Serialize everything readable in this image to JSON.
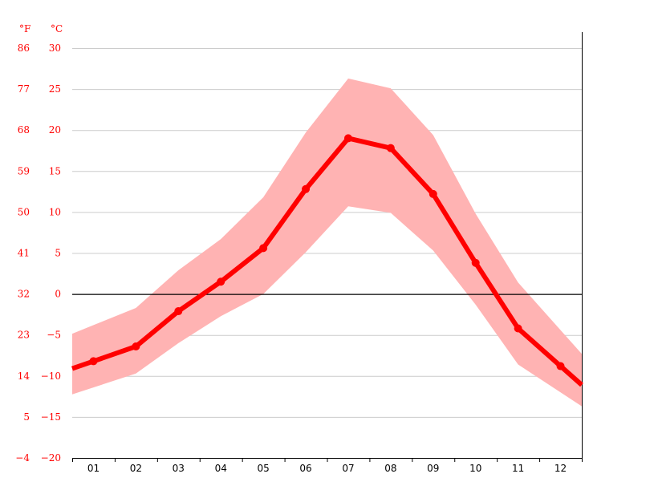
{
  "chart_data": {
    "type": "line",
    "title": "",
    "xlabel": "",
    "ylabel": "",
    "unit_f": "°F",
    "unit_c": "°C",
    "categories": [
      "01",
      "02",
      "03",
      "04",
      "05",
      "06",
      "07",
      "08",
      "09",
      "10",
      "11",
      "12"
    ],
    "c_ticks": [
      "30",
      "25",
      "20",
      "15",
      "10",
      "5",
      "0",
      "-5",
      "-10",
      "-15",
      "-20"
    ],
    "f_ticks": [
      "86",
      "77",
      "68",
      "59",
      "50",
      "41",
      "32",
      "23",
      "14",
      "5",
      "-4"
    ],
    "ylim_c": [
      -20,
      30
    ],
    "zero_line": true,
    "grid": true,
    "series": [
      {
        "role": "mean",
        "values": [
          -8.2,
          -6.4,
          -2.1,
          1.5,
          5.6,
          12.8,
          19.0,
          17.8,
          12.2,
          3.8,
          -4.2,
          -8.8
        ]
      },
      {
        "role": "max",
        "values": [
          -3.8,
          -1.7,
          2.9,
          6.7,
          11.8,
          19.7,
          26.3,
          25.1,
          19.4,
          9.8,
          1.4,
          -4.4
        ]
      },
      {
        "role": "min",
        "values": [
          -11.4,
          -9.7,
          -6.0,
          -2.7,
          0.0,
          5.1,
          10.7,
          9.9,
          5.3,
          -1.3,
          -8.6,
          -12.0
        ]
      }
    ],
    "colors": {
      "mean_line": "#ff0000",
      "band": "#ffb3b3",
      "zero_line": "#000000",
      "grid": "#cccccc",
      "tick_text": "#ff0000"
    }
  }
}
